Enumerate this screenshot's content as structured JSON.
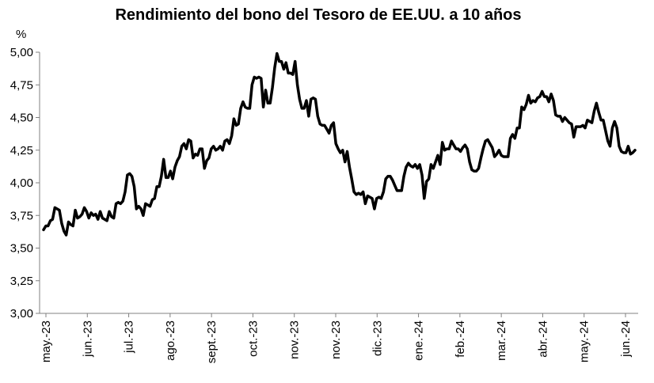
{
  "chart_data": {
    "type": "line",
    "title": "Rendimiento del bono del Tesoro de EE.UU. a 10 años",
    "ylabel": "%",
    "xlabel": "",
    "ylim": [
      3.0,
      5.0
    ],
    "yticks": [
      "3,00",
      "3,25",
      "3,50",
      "3,75",
      "4,00",
      "4,25",
      "4,50",
      "4,75",
      "5,00"
    ],
    "ytick_values": [
      3.0,
      3.25,
      3.5,
      3.75,
      4.0,
      4.25,
      4.5,
      4.75,
      5.0
    ],
    "xticks": [
      "may.-23",
      "jun.-23",
      "jul.-23",
      "ago.-23",
      "sept.-23",
      "oct.-23",
      "nov.-23",
      "nov.-23",
      "dic.-23",
      "ene.-24",
      "feb.-24",
      "mar.-24",
      "abr.-24",
      "may.-24",
      "jun.-24"
    ],
    "grid": false,
    "legend": "none",
    "line_color": "#000000",
    "series": [
      {
        "values": [
          3.64,
          3.67,
          3.67,
          3.71,
          3.72,
          3.81,
          3.8,
          3.79,
          3.69,
          3.63,
          3.6,
          3.7,
          3.68,
          3.67,
          3.79,
          3.73,
          3.74,
          3.76,
          3.81,
          3.78,
          3.73,
          3.77,
          3.75,
          3.76,
          3.72,
          3.78,
          3.73,
          3.72,
          3.71,
          3.78,
          3.74,
          3.73,
          3.84,
          3.85,
          3.84,
          3.86,
          3.93,
          4.06,
          4.07,
          4.05,
          3.97,
          3.8,
          3.82,
          3.8,
          3.75,
          3.84,
          3.83,
          3.82,
          3.87,
          3.88,
          3.97,
          3.97,
          4.05,
          4.18,
          4.04,
          4.04,
          4.09,
          4.03,
          4.12,
          4.17,
          4.2,
          4.28,
          4.3,
          4.26,
          4.33,
          4.32,
          4.19,
          4.22,
          4.21,
          4.26,
          4.26,
          4.11,
          4.17,
          4.19,
          4.26,
          4.28,
          4.25,
          4.26,
          4.28,
          4.25,
          4.32,
          4.33,
          4.3,
          4.36,
          4.49,
          4.44,
          4.45,
          4.57,
          4.62,
          4.58,
          4.57,
          4.57,
          4.75,
          4.81,
          4.8,
          4.81,
          4.8,
          4.58,
          4.71,
          4.61,
          4.61,
          4.73,
          4.88,
          4.99,
          4.93,
          4.93,
          4.87,
          4.92,
          4.84,
          4.84,
          4.83,
          4.93,
          4.75,
          4.64,
          4.57,
          4.57,
          4.63,
          4.51,
          4.64,
          4.65,
          4.64,
          4.51,
          4.45,
          4.44,
          4.44,
          4.41,
          4.38,
          4.44,
          4.46,
          4.3,
          4.26,
          4.23,
          4.25,
          4.16,
          4.24,
          4.12,
          4.03,
          3.93,
          3.91,
          3.92,
          3.91,
          3.93,
          3.84,
          3.9,
          3.89,
          3.88,
          3.8,
          3.88,
          3.89,
          3.88,
          3.93,
          4.03,
          4.05,
          4.05,
          4.02,
          3.98,
          3.94,
          3.94,
          3.94,
          4.05,
          4.12,
          4.15,
          4.13,
          4.12,
          4.14,
          4.11,
          4.14,
          4.06,
          3.88,
          4.01,
          4.03,
          4.14,
          4.11,
          4.16,
          4.21,
          4.14,
          4.31,
          4.25,
          4.26,
          4.26,
          4.32,
          4.29,
          4.26,
          4.26,
          4.24,
          4.27,
          4.29,
          4.26,
          4.16,
          4.1,
          4.09,
          4.09,
          4.11,
          4.19,
          4.26,
          4.32,
          4.33,
          4.3,
          4.27,
          4.2,
          4.22,
          4.25,
          4.21,
          4.2,
          4.2,
          4.2,
          4.34,
          4.37,
          4.34,
          4.42,
          4.42,
          4.58,
          4.56,
          4.6,
          4.67,
          4.61,
          4.63,
          4.62,
          4.65,
          4.66,
          4.7,
          4.66,
          4.66,
          4.62,
          4.68,
          4.63,
          4.52,
          4.51,
          4.51,
          4.47,
          4.5,
          4.48,
          4.46,
          4.45,
          4.35,
          4.43,
          4.43,
          4.43,
          4.44,
          4.42,
          4.48,
          4.47,
          4.46,
          4.55,
          4.61,
          4.54,
          4.48,
          4.48,
          4.4,
          4.32,
          4.28,
          4.42,
          4.47,
          4.42,
          4.28,
          4.24,
          4.23,
          4.23,
          4.28,
          4.22,
          4.23,
          4.25
        ]
      }
    ]
  }
}
